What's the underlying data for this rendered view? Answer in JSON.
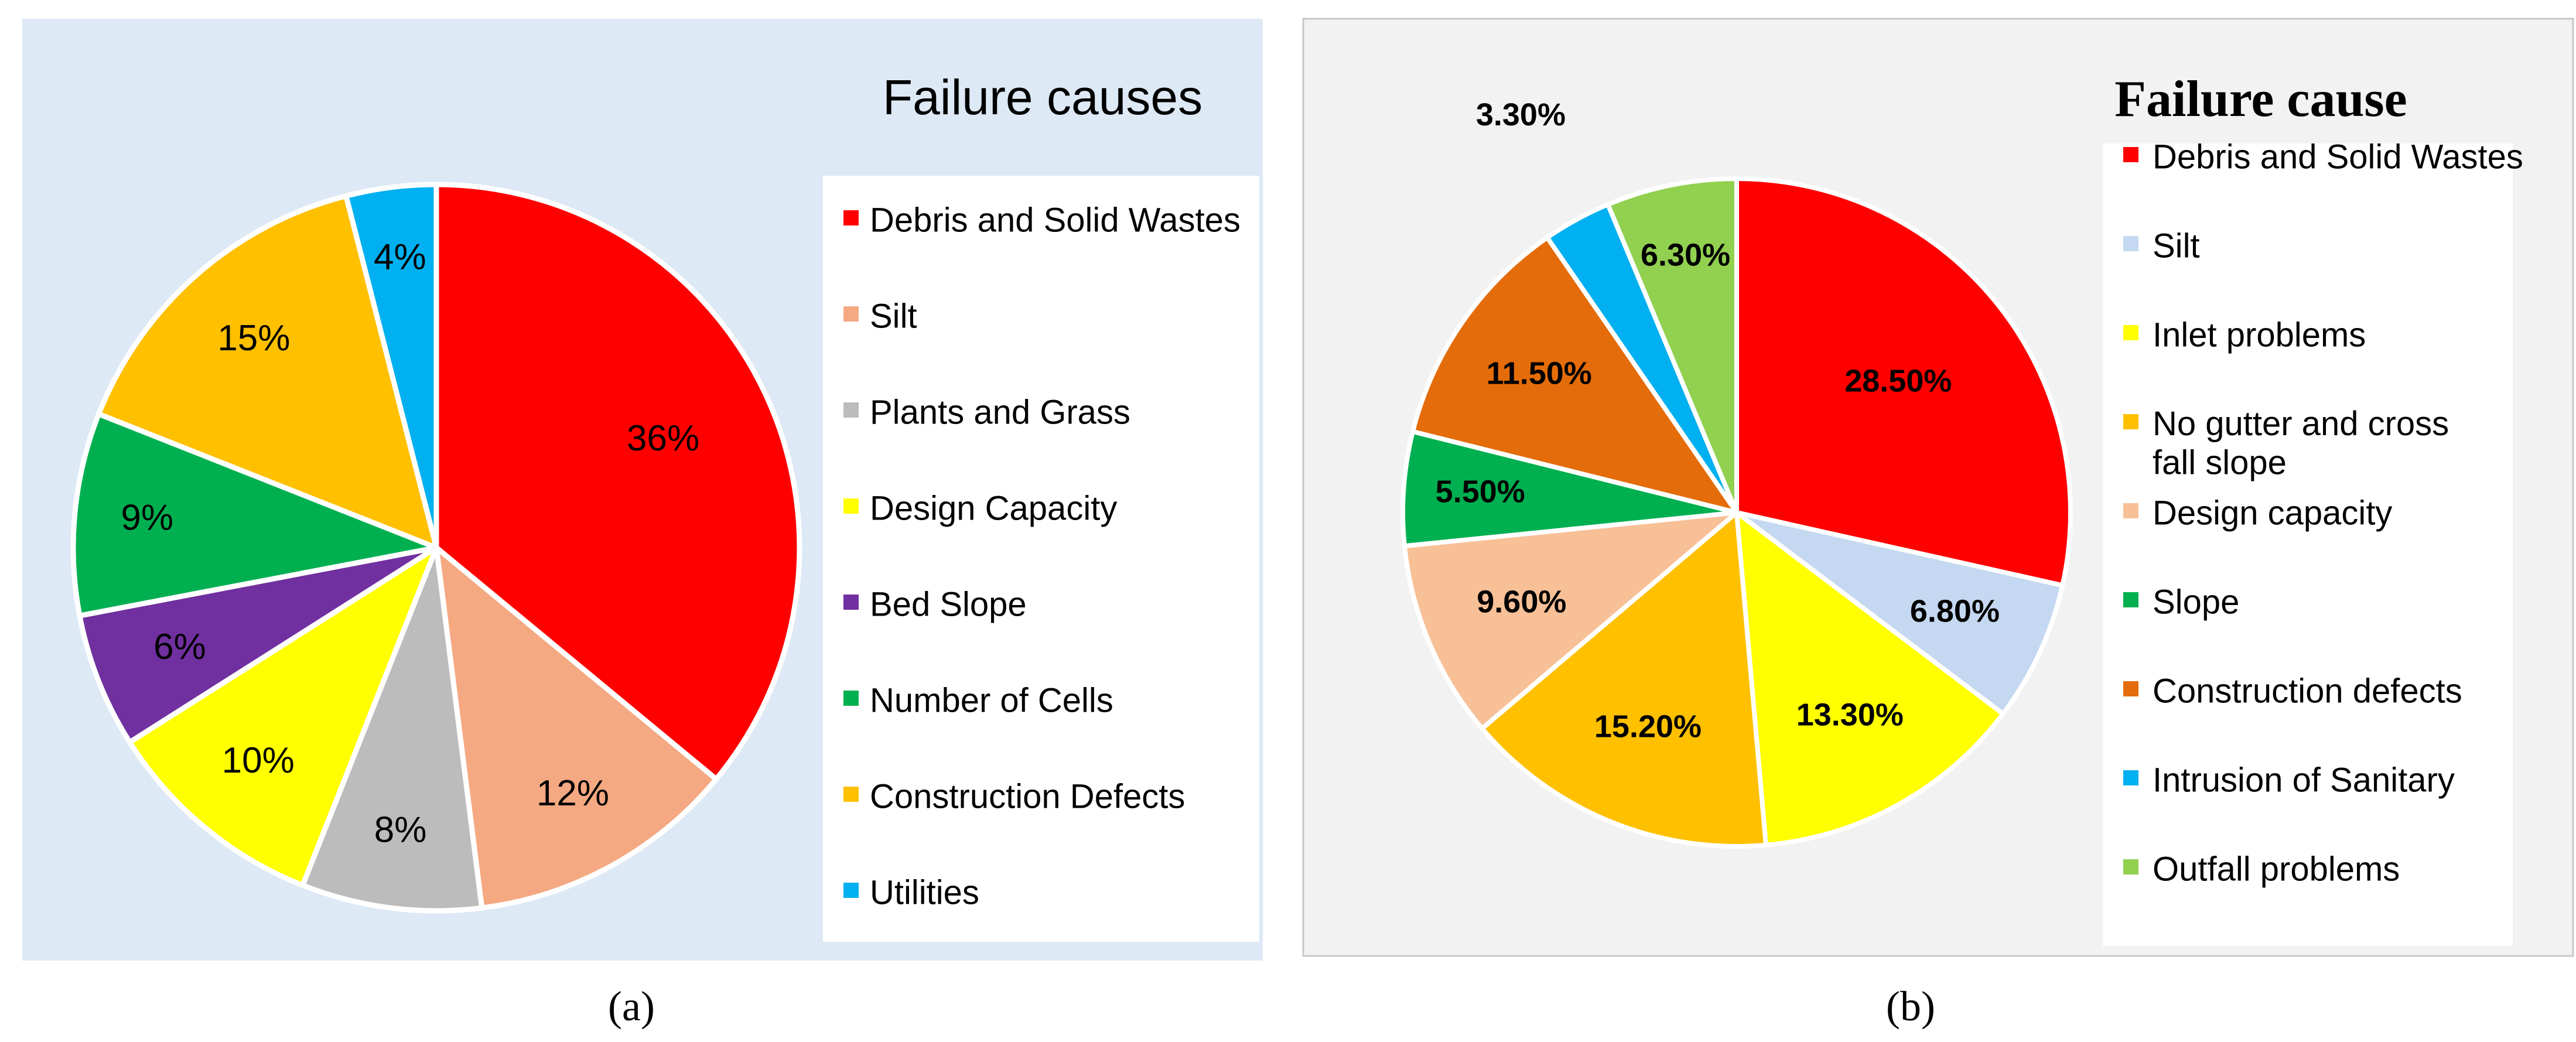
{
  "figure": {
    "label_a": "(a)",
    "label_b": "(b)"
  },
  "chart_data": [
    {
      "type": "pie",
      "title": "Failure causes",
      "unit": "%",
      "slices": [
        {
          "label": "Debris and Solid Wastes",
          "value": 36,
          "display": "36%",
          "color": "#ff0000"
        },
        {
          "label": "Silt",
          "value": 12,
          "display": "12%",
          "color": "#f4a982"
        },
        {
          "label": "Plants and Grass",
          "value": 8,
          "display": "8%",
          "color": "#bcbcbc"
        },
        {
          "label": "Design Capacity",
          "value": 10,
          "display": "10%",
          "color": "#ffff00"
        },
        {
          "label": "Bed Slope",
          "value": 6,
          "display": "6%",
          "color": "#7030a0"
        },
        {
          "label": "Number of Cells",
          "value": 9,
          "display": "9%",
          "color": "#00b050"
        },
        {
          "label": "Construction Defects",
          "value": 15,
          "display": "15%",
          "color": "#ffc000"
        },
        {
          "label": "Utilities",
          "value": 4,
          "display": "4%",
          "color": "#00b0f0"
        }
      ],
      "legend_position": "right",
      "background": "#dde9f5"
    },
    {
      "type": "pie",
      "title": "Failure cause",
      "unit": "%",
      "slices": [
        {
          "label": "Debris and Solid Wastes",
          "value": 28.5,
          "display": "28.50%",
          "color": "#ff0000"
        },
        {
          "label": "Silt",
          "value": 6.8,
          "display": "6.80%",
          "color": "#c5d8f1"
        },
        {
          "label": "Inlet problems",
          "value": 13.3,
          "display": "13.30%",
          "color": "#ffff00"
        },
        {
          "label": "No gutter and cross fall slope",
          "value": 15.2,
          "display": "15.20%",
          "color": "#ffc000"
        },
        {
          "label": "Design capacity",
          "value": 9.6,
          "display": "9.60%",
          "color": "#f8c097"
        },
        {
          "label": "Slope",
          "value": 5.5,
          "display": "5.50%",
          "color": "#00b050"
        },
        {
          "label": "Construction defects",
          "value": 11.5,
          "display": "11.50%",
          "color": "#e46c0a"
        },
        {
          "label": "Intrusion of Sanitary",
          "value": 3.3,
          "display": "3.30%",
          "color": "#00b0f0"
        },
        {
          "label": "Outfall problems",
          "value": 6.3,
          "display": "6.30%",
          "color": "#92d050"
        }
      ],
      "legend_position": "right",
      "background": "#f2f2f2"
    }
  ]
}
